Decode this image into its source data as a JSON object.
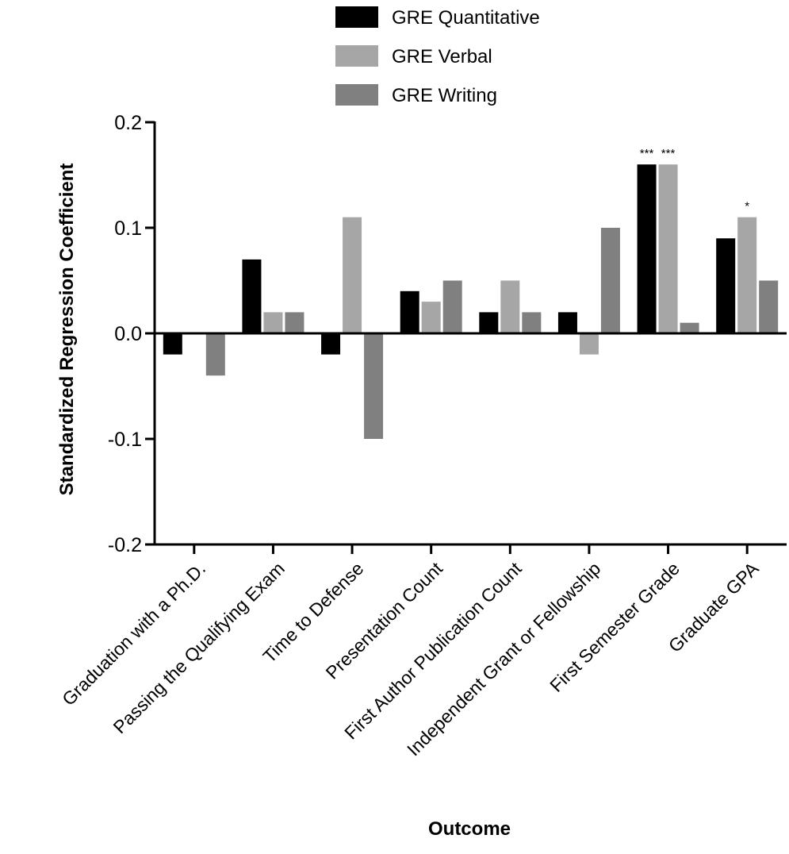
{
  "chart_data": {
    "type": "bar",
    "title": "",
    "xlabel": "Outcome",
    "ylabel": "Standardized Regression Coefficient",
    "ylim": [
      -0.2,
      0.2
    ],
    "yticks": [
      "0.2",
      "0.1",
      "0.0",
      "-0.1",
      "-0.2"
    ],
    "ytick_values": [
      0.2,
      0.1,
      0.0,
      -0.1,
      -0.2
    ],
    "categories": [
      "Graduation with a Ph.D.",
      "Passing the Qualifying Exam",
      "Time to Defense",
      "Presentation Count",
      "First Author Publication Count",
      "Independent Grant or Fellowship",
      "First Semester Grade",
      "Graduate GPA"
    ],
    "series": [
      {
        "name": "GRE Quantitative",
        "color": "#000000",
        "values": [
          -0.02,
          0.07,
          -0.02,
          0.04,
          0.02,
          0.02,
          0.16,
          0.09
        ]
      },
      {
        "name": "GRE Verbal",
        "color": "#a6a6a6",
        "values": [
          0.0,
          0.02,
          0.11,
          0.03,
          0.05,
          -0.02,
          0.16,
          0.11
        ]
      },
      {
        "name": "GRE Writing",
        "color": "#808080",
        "values": [
          -0.04,
          0.02,
          -0.1,
          0.05,
          0.02,
          0.1,
          0.01,
          0.05
        ]
      }
    ],
    "annotations": [
      {
        "series": 0,
        "category": 6,
        "text": "***"
      },
      {
        "series": 1,
        "category": 6,
        "text": "***"
      },
      {
        "series": 1,
        "category": 7,
        "text": "*"
      }
    ],
    "legend_position": "top",
    "grid": false
  }
}
